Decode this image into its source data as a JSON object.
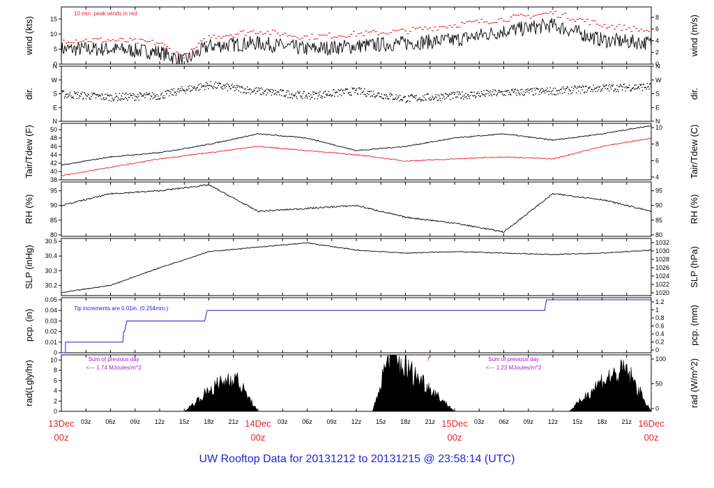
{
  "title": "UW Rooftop Data for 20131212  to  20131215 @ 23:58:14  (UTC)",
  "colors": {
    "black": "#000000",
    "red": "#e8202a",
    "blue": "#1b1bd8",
    "purple": "#9b1fcf",
    "title": "#1f24d6",
    "datecol": "#e8202a"
  },
  "time_axis": {
    "hour_ticks": [
      "03z",
      "06z",
      "09z",
      "12z",
      "15z",
      "18z",
      "21z",
      "03z",
      "06z",
      "09z",
      "12z",
      "15z",
      "18z",
      "21z",
      "03z",
      "06z",
      "09z",
      "12z",
      "15z",
      "18z",
      "21z"
    ],
    "day_labels": [
      {
        "date": "13Dec",
        "hour": "00z"
      },
      {
        "date": "14Dec",
        "hour": "00z"
      },
      {
        "date": "15Dec",
        "hour": "00z"
      },
      {
        "date": "16Dec",
        "hour": "00z"
      }
    ]
  },
  "chart_data": [
    {
      "type": "line",
      "ylabel": "wind (kts)",
      "ylabel_right": "wind (m/s)",
      "ylim": [
        0,
        19
      ],
      "yticks": [
        0,
        5,
        10,
        15
      ],
      "right_ylim": [
        0,
        9.77
      ],
      "right_yticks": [
        0,
        2,
        4,
        6,
        8
      ],
      "annotation": "10 min. peak winds in red",
      "series": [
        {
          "name": "wind",
          "x": [
            0,
            6,
            12,
            15,
            18,
            24,
            30,
            36,
            42,
            48,
            54,
            60,
            66,
            72
          ],
          "y": [
            5,
            5,
            4,
            1,
            6,
            7,
            5,
            6,
            7,
            8,
            11,
            13,
            8,
            7
          ]
        },
        {
          "name": "10 min. peak winds",
          "x": [
            0,
            6,
            12,
            15,
            18,
            24,
            30,
            36,
            42,
            48,
            54,
            60,
            66,
            72
          ],
          "y": [
            8,
            8,
            7,
            2,
            9,
            11,
            9,
            10,
            11,
            13,
            15,
            17,
            13,
            11
          ]
        }
      ]
    },
    {
      "type": "scatter",
      "ylabel": "dir.",
      "ylabel_right": "dir.",
      "ylim": [
        0,
        360
      ],
      "ytick_labels": [
        "N",
        "E",
        "S",
        "W",
        "N"
      ],
      "series": [
        {
          "name": "direction",
          "x": [
            0,
            6,
            12,
            15,
            18,
            24,
            30,
            36,
            42,
            48,
            54,
            60,
            66,
            72
          ],
          "y": [
            180,
            160,
            170,
            210,
            240,
            200,
            170,
            200,
            150,
            170,
            190,
            200,
            220,
            230
          ]
        }
      ]
    },
    {
      "type": "line",
      "ylabel": "Tair/Tdew (F)",
      "ylabel_right": "Tair/Tdew (C)",
      "ylim": [
        38,
        51.5
      ],
      "yticks": [
        38,
        40,
        42,
        44,
        46,
        48,
        50
      ],
      "right_yticks": [
        4,
        6,
        8,
        10
      ],
      "series": [
        {
          "name": "Tair",
          "x": [
            0,
            6,
            12,
            18,
            24,
            30,
            36,
            42,
            48,
            54,
            60,
            66,
            72
          ],
          "y": [
            41.5,
            43.5,
            44.5,
            46.5,
            49,
            48,
            45,
            46,
            48,
            49,
            47.5,
            49,
            51
          ]
        },
        {
          "name": "Tdew",
          "x": [
            0,
            6,
            12,
            18,
            24,
            30,
            36,
            42,
            48,
            54,
            60,
            66,
            72
          ],
          "y": [
            39,
            41,
            43,
            44.5,
            46,
            45,
            44,
            42.5,
            43,
            43.5,
            43,
            46,
            48
          ]
        }
      ]
    },
    {
      "type": "line",
      "ylabel": "RH (%)",
      "ylabel_right": "RH (%)",
      "ylim": [
        79.5,
        98
      ],
      "yticks": [
        80,
        85,
        90,
        95
      ],
      "series": [
        {
          "name": "RH",
          "x": [
            0,
            6,
            12,
            18,
            24,
            30,
            36,
            42,
            48,
            54,
            60,
            66,
            72
          ],
          "y": [
            90,
            94,
            95,
            97,
            88,
            89,
            90,
            86,
            84,
            81,
            94,
            92,
            88
          ]
        }
      ]
    },
    {
      "type": "line",
      "ylabel": "SLP (inHg)",
      "ylabel_right": "SLP (hPa)",
      "ylim": [
        30.13,
        30.52
      ],
      "yticks": [
        30.2,
        30.3,
        30.4,
        30.5
      ],
      "right_yticks": [
        1020,
        1022,
        1024,
        1026,
        1028,
        1030,
        1032
      ],
      "series": [
        {
          "name": "SLP",
          "x": [
            0,
            6,
            12,
            18,
            24,
            30,
            36,
            42,
            48,
            54,
            60,
            66,
            72
          ],
          "y": [
            30.15,
            30.2,
            30.32,
            30.43,
            30.46,
            30.49,
            30.44,
            30.42,
            30.43,
            30.42,
            30.41,
            30.42,
            30.44
          ]
        }
      ]
    },
    {
      "type": "line",
      "ylabel": "pcp. (in)",
      "ylabel_right": "pcp. (mm)",
      "ylim": [
        0,
        0.052
      ],
      "yticks": [
        0,
        0.01,
        0.02,
        0.03,
        0.04,
        0.05
      ],
      "right_yticks": [
        0,
        0.2,
        0.4,
        0.6,
        0.8,
        1,
        1.2
      ],
      "annotation": "Tip increments are 0.01in. (0.254mm.)",
      "series": [
        {
          "name": "pcp",
          "x": [
            0,
            0.5,
            0.5,
            7.5,
            7.6,
            7.7,
            8.0,
            17.5,
            17.8,
            59,
            59.2,
            72
          ],
          "y": [
            0,
            0,
            0.01,
            0.01,
            0.02,
            0.02,
            0.03,
            0.03,
            0.04,
            0.04,
            0.05,
            0.05
          ]
        }
      ]
    },
    {
      "type": "area",
      "ylabel": "rad(Lgly/hr)",
      "ylabel_right": "rad (W/m^2)",
      "ylim": [
        0,
        11
      ],
      "yticks": [
        0,
        2,
        4,
        6,
        8,
        10
      ],
      "right_yticks": [
        0,
        50,
        100
      ],
      "annotations": [
        {
          "line1": "Sum of previous day",
          "line2": "<--- 1.74 MJoules/m^2"
        },
        {
          "line1": "Sum of previous day",
          "line2": "<--- 1.23 MJoules/m^2"
        }
      ],
      "marker": "f",
      "series": [
        {
          "name": "rad",
          "x": [
            0,
            15,
            18,
            21,
            24,
            38,
            40,
            44,
            48,
            62,
            66,
            69,
            72
          ],
          "y": [
            0,
            0,
            4,
            7,
            0,
            0,
            11,
            6,
            0,
            0,
            6,
            8,
            0
          ]
        }
      ]
    }
  ]
}
